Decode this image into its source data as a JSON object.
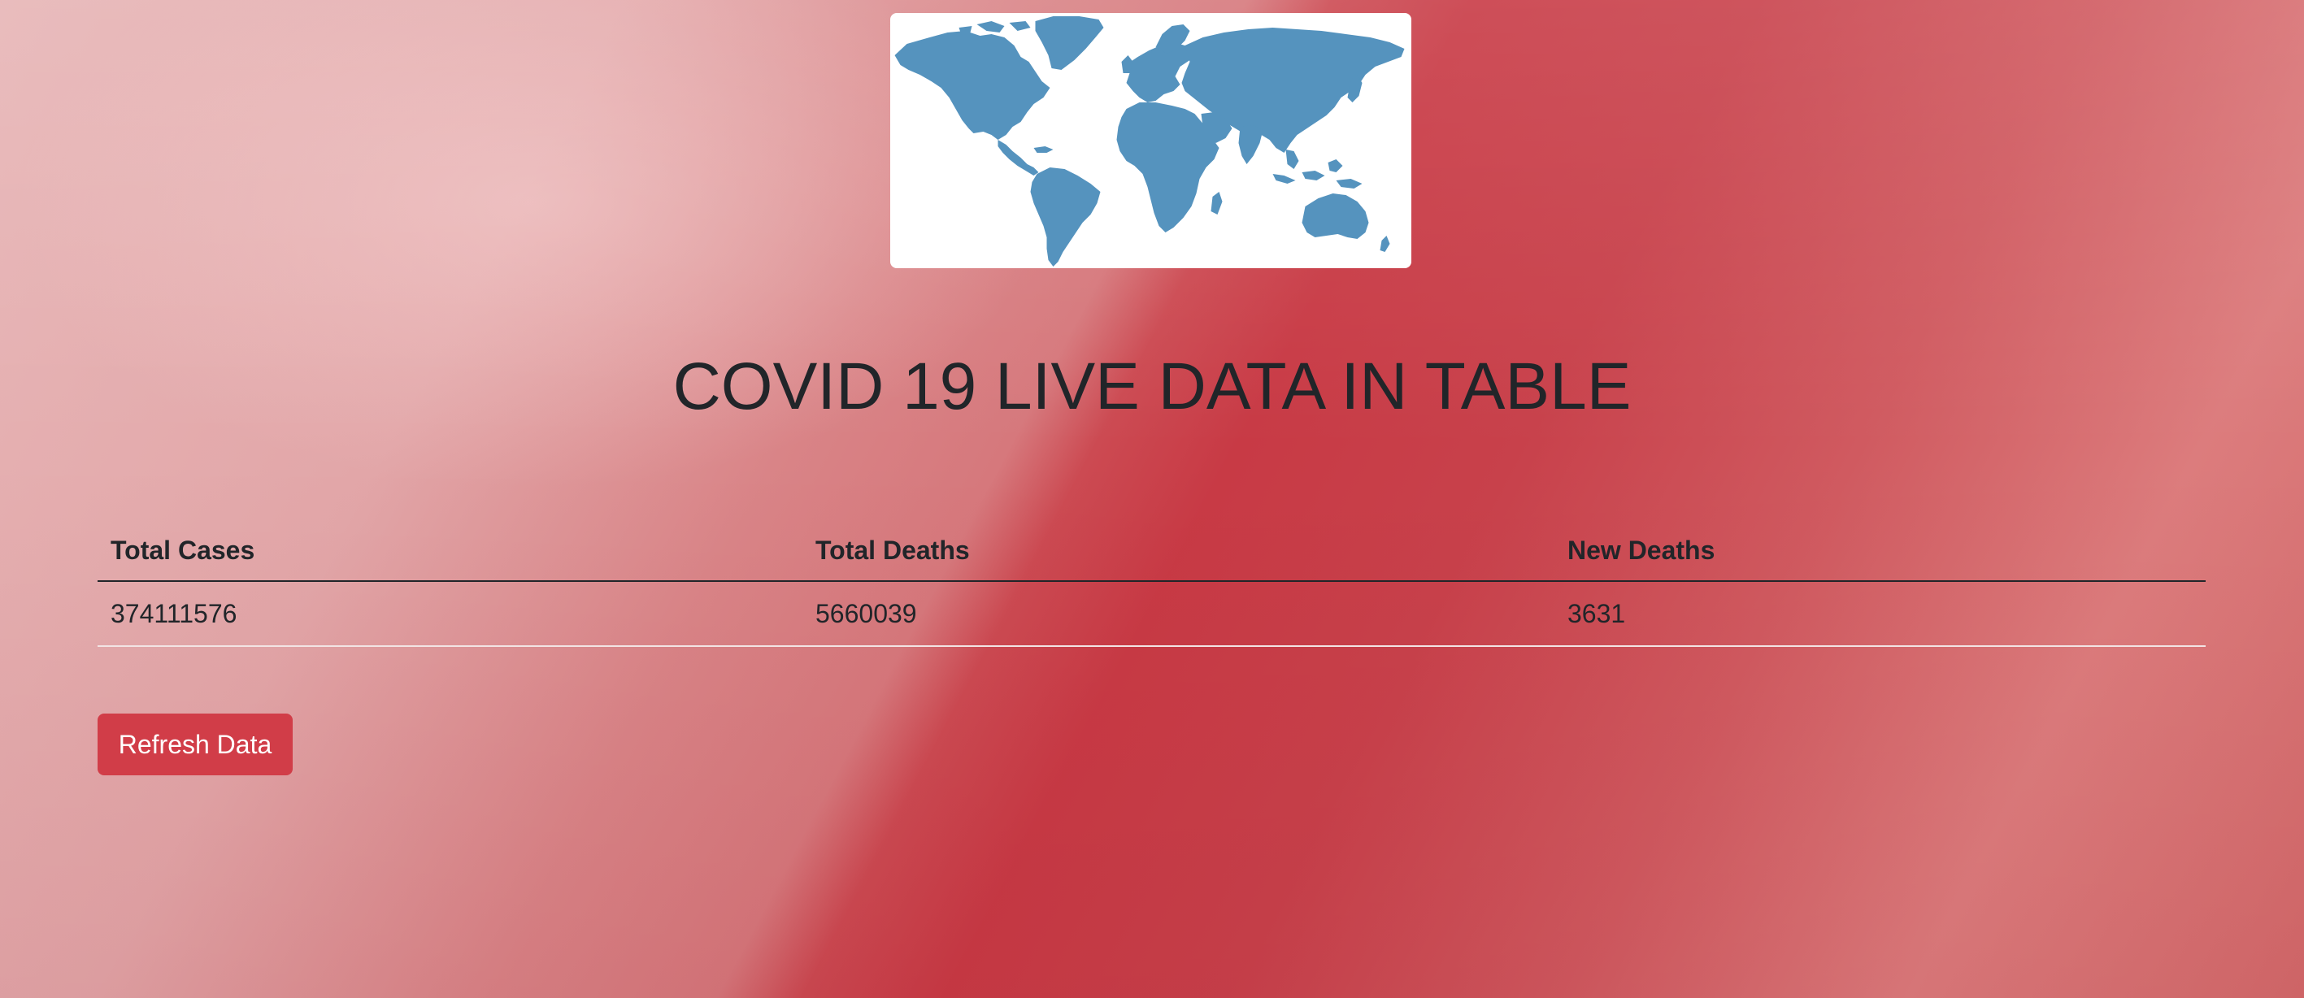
{
  "page": {
    "title": "COVID 19 LIVE DATA IN TABLE"
  },
  "map_image": {
    "icon": "world-map",
    "land_color": "#5593be",
    "card_color": "#ffffff"
  },
  "table": {
    "headers": [
      "Total Cases",
      "Total Deaths",
      "New Deaths"
    ],
    "rows": [
      [
        "374111576",
        "5660039",
        "3631"
      ]
    ]
  },
  "actions": {
    "refresh_label": "Refresh Data",
    "refresh_color": "#d13d48"
  }
}
